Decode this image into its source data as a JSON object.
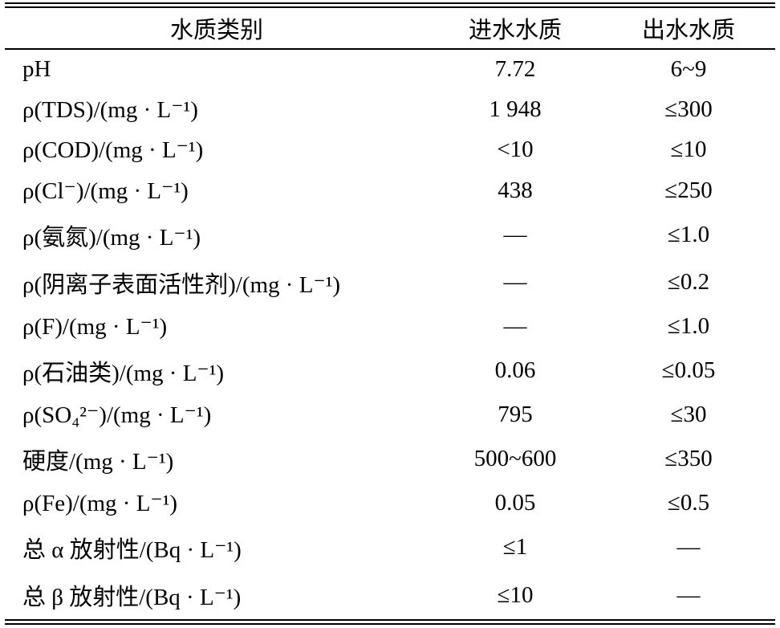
{
  "table": {
    "headers": {
      "category": "水质类别",
      "inlet": "进水水质",
      "outlet": "出水水质"
    },
    "rows": [
      {
        "param": "pH",
        "inlet": "7.72",
        "outlet": "6~9"
      },
      {
        "param": "ρ(TDS)/(mg · L⁻¹)",
        "inlet": "1 948",
        "outlet": "≤300"
      },
      {
        "param": "ρ(COD)/(mg · L⁻¹)",
        "inlet": "<10",
        "outlet": "≤10"
      },
      {
        "param": "ρ(Cl⁻)/(mg · L⁻¹)",
        "inlet": "438",
        "outlet": "≤250"
      },
      {
        "param": "ρ(氨氮)/(mg · L⁻¹)",
        "inlet": "—",
        "outlet": "≤1.0"
      },
      {
        "param": "ρ(阴离子表面活性剂)/(mg · L⁻¹)",
        "inlet": "—",
        "outlet": "≤0.2"
      },
      {
        "param": "ρ(F)/(mg · L⁻¹)",
        "inlet": "—",
        "outlet": "≤1.0"
      },
      {
        "param": "ρ(石油类)/(mg · L⁻¹)",
        "inlet": "0.06",
        "outlet": "≤0.05"
      },
      {
        "param": "ρ(SO₄²⁻)/(mg · L⁻¹)",
        "inlet": "795",
        "outlet": "≤30"
      },
      {
        "param": "硬度/(mg · L⁻¹)",
        "inlet": "500~600",
        "outlet": "≤350"
      },
      {
        "param": "ρ(Fe)/(mg · L⁻¹)",
        "inlet": "0.05",
        "outlet": "≤0.5"
      },
      {
        "param": "总 α 放射性/(Bq · L⁻¹)",
        "inlet": "≤1",
        "outlet": "—"
      },
      {
        "param": "总 β 放射性/(Bq · L⁻¹)",
        "inlet": "≤10",
        "outlet": "—"
      }
    ]
  }
}
